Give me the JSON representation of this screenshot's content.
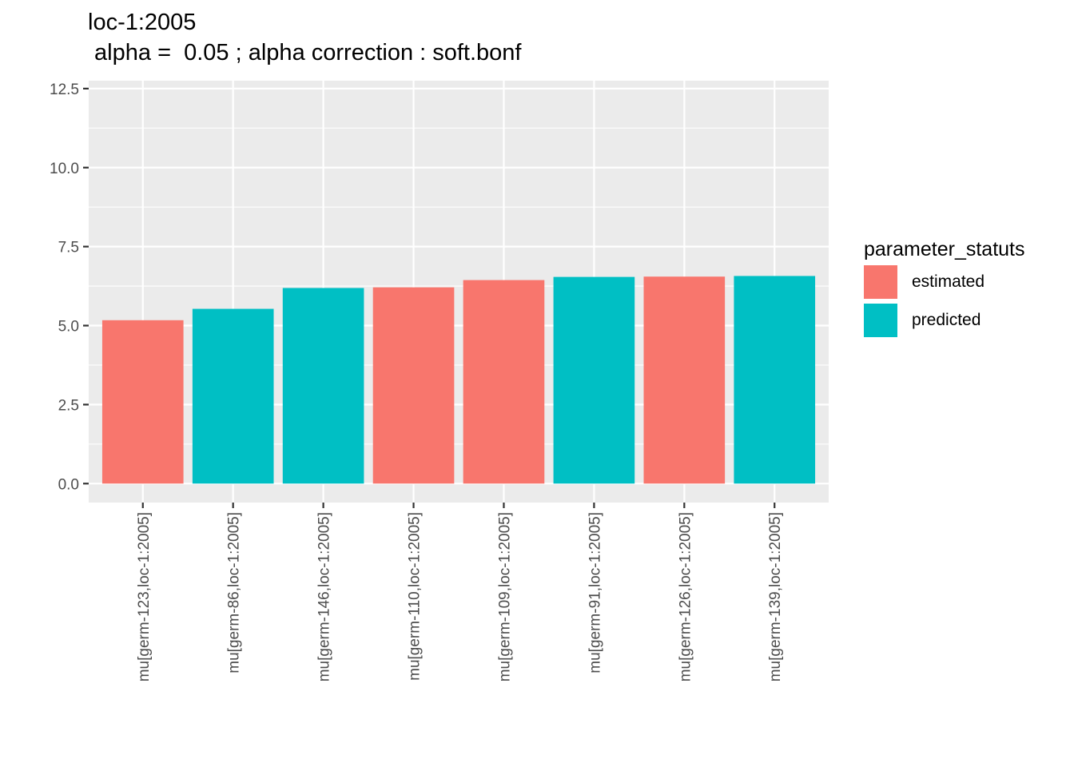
{
  "chart_data": {
    "type": "bar",
    "title": "loc-1:2005",
    "subtitle": " alpha =  0.05 ; alpha correction : soft.bonf",
    "xlabel": "",
    "ylabel": "",
    "ylim": [
      -0.6,
      12.75
    ],
    "y_ticks": [
      "0.0",
      "2.5",
      "5.0",
      "7.5",
      "10.0",
      "12.5"
    ],
    "y_tick_values": [
      0,
      2.5,
      5,
      7.5,
      10,
      12.5
    ],
    "grid": true,
    "categories": [
      "mu[germ-123,loc-1:2005]",
      "mu[germ-86,loc-1:2005]",
      "mu[germ-146,loc-1:2005]",
      "mu[germ-110,loc-1:2005]",
      "mu[germ-109,loc-1:2005]",
      "mu[germ-91,loc-1:2005]",
      "mu[germ-126,loc-1:2005]",
      "mu[germ-139,loc-1:2005]"
    ],
    "values": [
      5.17,
      5.53,
      6.19,
      6.21,
      6.44,
      6.54,
      6.55,
      6.57
    ],
    "status": [
      "estimated",
      "predicted",
      "predicted",
      "estimated",
      "estimated",
      "predicted",
      "estimated",
      "predicted"
    ],
    "legend": {
      "title": "parameter_statuts",
      "placement": "right",
      "entries": [
        {
          "label": "estimated",
          "color": "#F8766D"
        },
        {
          "label": "predicted",
          "color": "#00BFC4"
        }
      ]
    },
    "panel_color": "#EBEBEB",
    "grid_color": "#FFFFFF",
    "tick_color": "#333333"
  }
}
